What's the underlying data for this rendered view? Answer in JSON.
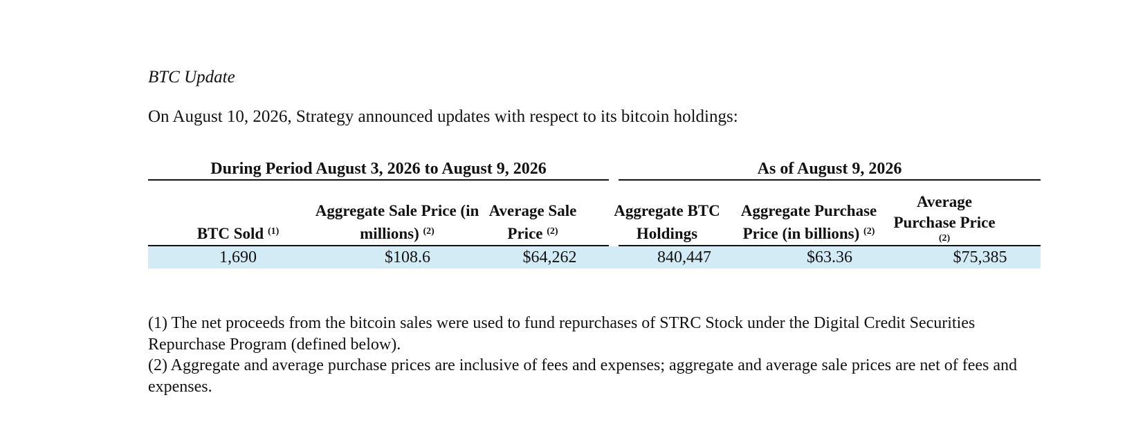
{
  "section_title": "BTC Update",
  "intro": "On August 10, 2026, Strategy announced updates with respect to its bitcoin holdings:",
  "table": {
    "group_headers": [
      "During Period August 3, 2026 to August 9, 2026",
      "As of August 9, 2026"
    ],
    "columns": [
      {
        "label": "BTC Sold",
        "footnote": "(1)"
      },
      {
        "label": "Aggregate Sale Price (in millions)",
        "footnote": "(2)"
      },
      {
        "label": "Average Sale Price",
        "footnote": "(2)"
      },
      {
        "label": "Aggregate BTC Holdings",
        "footnote": ""
      },
      {
        "label": "Aggregate Purchase Price (in billions)",
        "footnote": "(2)"
      },
      {
        "label": "Average Purchase Price",
        "footnote": "(2)"
      }
    ],
    "rows": [
      [
        "1,690",
        "$108.6",
        "$64,262",
        "840,447",
        "$63.36",
        "$75,385"
      ]
    ],
    "row_highlight_color": "#d3ebf4"
  },
  "footnotes": [
    "(1) The net proceeds from the bitcoin sales were used to fund repurchases of STRC Stock under the Digital Credit Securities Repurchase Program (defined below).",
    "(2) Aggregate and average purchase prices are inclusive of fees and expenses; aggregate and average sale prices are net of fees and expenses."
  ]
}
